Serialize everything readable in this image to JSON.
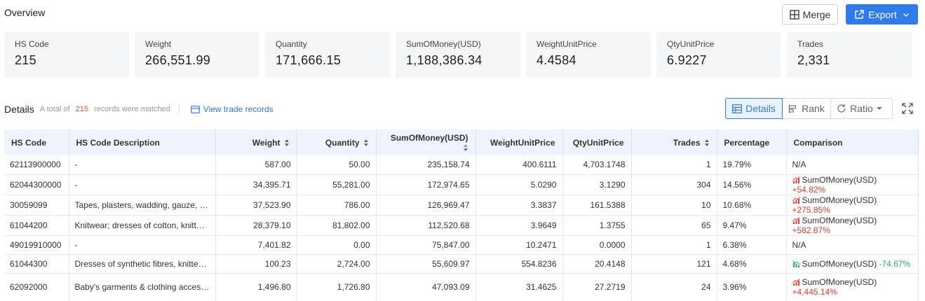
{
  "header": {
    "title": "Overview",
    "merge_label": "Merge",
    "export_label": "Export"
  },
  "stats": [
    {
      "label": "HS Code",
      "value": "215"
    },
    {
      "label": "Weight",
      "value": "266,551.99"
    },
    {
      "label": "Quantity",
      "value": "171,666.15"
    },
    {
      "label": "SumOfMoney(USD)",
      "value": "1,188,386.34"
    },
    {
      "label": "WeightUnitPrice",
      "value": "4.4584"
    },
    {
      "label": "QtyUnitPrice",
      "value": "6.9227"
    },
    {
      "label": "Trades",
      "value": "2,331"
    }
  ],
  "details": {
    "title": "Details",
    "total_prefix": "A total of",
    "count": "215",
    "total_suffix": "records were matched",
    "view_link": "View trade records",
    "views": {
      "details": "Details",
      "rank": "Rank",
      "ratio": "Ratio"
    }
  },
  "table": {
    "columns": [
      "HS Code",
      "HS Code Description",
      "Weight",
      "Quantity",
      "SumOfMoney(USD)",
      "WeightUnitPrice",
      "QtyUnitPrice",
      "Trades",
      "Percentage",
      "Comparison"
    ],
    "rows": [
      {
        "hs": "62113900000",
        "desc": "-",
        "weight": "587.00",
        "qty": "50.00",
        "sum": "235,158.74",
        "wup": "400.6111",
        "qup": "4,703.1748",
        "trades": "1",
        "pct": "19.79%",
        "cmp": {
          "label": "N/A",
          "change": "",
          "dir": "none"
        }
      },
      {
        "hs": "62044300000",
        "desc": "-",
        "weight": "34,395.71",
        "qty": "55,281.00",
        "sum": "172,974.65",
        "wup": "5.0290",
        "qup": "3.1290",
        "trades": "304",
        "pct": "14.56%",
        "cmp": {
          "label": "SumOfMoney(USD)",
          "change": "+54.82%",
          "dir": "up"
        }
      },
      {
        "hs": "30059099",
        "desc": "Tapes, plasters, wadding, gauze, ban...",
        "weight": "37,523.90",
        "qty": "786.00",
        "sum": "126,969.47",
        "wup": "3.3837",
        "qup": "161.5388",
        "trades": "10",
        "pct": "10.68%",
        "cmp": {
          "label": "SumOfMoney(USD)",
          "change": "+275.85%",
          "dir": "up"
        }
      },
      {
        "hs": "61044200",
        "desc": "Knitwear; dresses of cotton, knitted ...",
        "weight": "28,379.10",
        "qty": "81,802.00",
        "sum": "112,520.68",
        "wup": "3.9649",
        "qup": "1.3755",
        "trades": "65",
        "pct": "9.47%",
        "cmp": {
          "label": "SumOfMoney(USD)",
          "change": "+582.87%",
          "dir": "up"
        }
      },
      {
        "hs": "49019910000",
        "desc": "-",
        "weight": "7,401.82",
        "qty": "0.00",
        "sum": "75,847.00",
        "wup": "10.2471",
        "qup": "0.0000",
        "trades": "1",
        "pct": "6.38%",
        "cmp": {
          "label": "N/A",
          "change": "",
          "dir": "none"
        }
      },
      {
        "hs": "61044300",
        "desc": "Dresses of synthetic fibres, knitted o...",
        "weight": "100.23",
        "qty": "2,724.00",
        "sum": "55,609.97",
        "wup": "554.8236",
        "qup": "20.4148",
        "trades": "121",
        "pct": "4.68%",
        "cmp": {
          "label": "SumOfMoney(USD)",
          "change": "-74.67%",
          "dir": "down"
        }
      },
      {
        "hs": "62092000",
        "desc": "Baby's garments & clothing accesso...",
        "weight": "1,496.80",
        "qty": "1,726.80",
        "sum": "47,093.09",
        "wup": "31.4625",
        "qup": "27.2719",
        "trades": "24",
        "pct": "3.96%",
        "cmp": {
          "label": "SumOfMoney(USD)",
          "change": "+4,445.14%",
          "dir": "up"
        }
      }
    ]
  },
  "colors": {
    "accent": "#2f7bea",
    "up": "#e53a2c",
    "down": "#21b26d",
    "header_bg": "#eef3fd",
    "card_bg": "#f5f6f8"
  }
}
